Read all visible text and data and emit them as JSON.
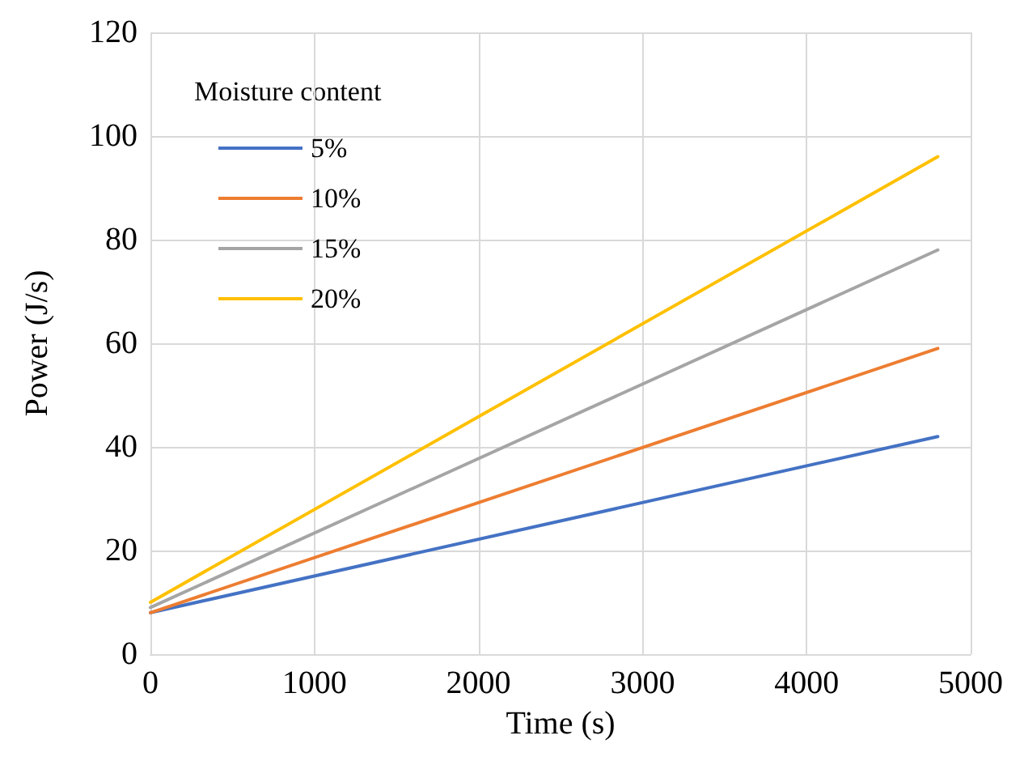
{
  "chart_data": {
    "type": "line",
    "xlabel": "Time (s)",
    "ylabel": "Power (J/s)",
    "legend_title": "Moisture content",
    "x": [
      0,
      4800
    ],
    "series": [
      {
        "name": "5%",
        "color": "#4472c4",
        "values": [
          8,
          42
        ]
      },
      {
        "name": "10%",
        "color": "#ed7d31",
        "values": [
          8,
          59
        ]
      },
      {
        "name": "15%",
        "color": "#a5a5a5",
        "values": [
          9,
          78
        ]
      },
      {
        "name": "20%",
        "color": "#ffc000",
        "values": [
          10,
          96
        ]
      }
    ],
    "xlim": [
      0,
      5000
    ],
    "xticks": [
      0,
      1000,
      2000,
      3000,
      4000,
      5000
    ],
    "ylim": [
      0,
      120
    ],
    "yticks": [
      0,
      20,
      40,
      60,
      80,
      100,
      120
    ],
    "grid": true,
    "legend": "top left",
    "marker": "none",
    "line_style": "solid"
  }
}
